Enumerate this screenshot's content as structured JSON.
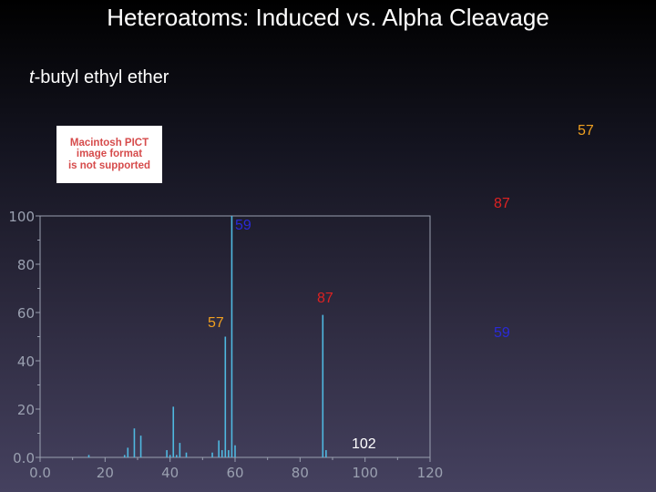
{
  "title": "Heteroatoms: Induced vs. Alpha Cleavage",
  "subtitle": {
    "prefix_italic": "t",
    "rest": "-butyl ethyl ether"
  },
  "pict_placeholder": [
    "Macintosh PICT",
    "image format",
    "is not supported"
  ],
  "colors": {
    "peak_line": "#4fb8e0",
    "axis_text": "#9aa0b0",
    "orange": "#f0a020",
    "red": "#dd2222",
    "blue": "#2a2ad8",
    "white": "#ffffff"
  },
  "annotations": [
    {
      "id": "label-57-top",
      "text": "57",
      "color": "orange"
    },
    {
      "id": "label-87-top",
      "text": "87",
      "color": "red"
    },
    {
      "id": "label-59-top",
      "text": "59",
      "color": "blue"
    },
    {
      "id": "label-87-mid",
      "text": "87",
      "color": "red"
    },
    {
      "id": "label-57-left",
      "text": "57",
      "color": "orange"
    },
    {
      "id": "label-59-right",
      "text": "59",
      "color": "blue"
    },
    {
      "id": "label-102",
      "text": "102",
      "color": "white"
    }
  ],
  "chart_data": {
    "type": "bar",
    "xlim": [
      0,
      120
    ],
    "ylim": [
      0,
      100
    ],
    "xticks": [
      "0.0",
      "20",
      "40",
      "60",
      "80",
      "100",
      "120"
    ],
    "xtick_values": [
      0,
      20,
      40,
      60,
      80,
      100,
      120
    ],
    "yticks": [
      "0.0",
      "20",
      "40",
      "60",
      "80",
      "100"
    ],
    "ytick_values": [
      0,
      20,
      40,
      60,
      80,
      100
    ],
    "peaks": [
      {
        "mz": 15,
        "intensity": 1
      },
      {
        "mz": 26,
        "intensity": 1
      },
      {
        "mz": 27,
        "intensity": 4
      },
      {
        "mz": 29,
        "intensity": 12
      },
      {
        "mz": 31,
        "intensity": 9
      },
      {
        "mz": 39,
        "intensity": 3
      },
      {
        "mz": 40,
        "intensity": 1
      },
      {
        "mz": 41,
        "intensity": 21
      },
      {
        "mz": 42,
        "intensity": 1
      },
      {
        "mz": 43,
        "intensity": 6
      },
      {
        "mz": 45,
        "intensity": 2
      },
      {
        "mz": 53,
        "intensity": 2
      },
      {
        "mz": 55,
        "intensity": 7
      },
      {
        "mz": 56,
        "intensity": 3
      },
      {
        "mz": 57,
        "intensity": 50
      },
      {
        "mz": 58,
        "intensity": 3
      },
      {
        "mz": 59,
        "intensity": 100
      },
      {
        "mz": 60,
        "intensity": 5
      },
      {
        "mz": 87,
        "intensity": 59
      },
      {
        "mz": 88,
        "intensity": 3
      }
    ]
  }
}
